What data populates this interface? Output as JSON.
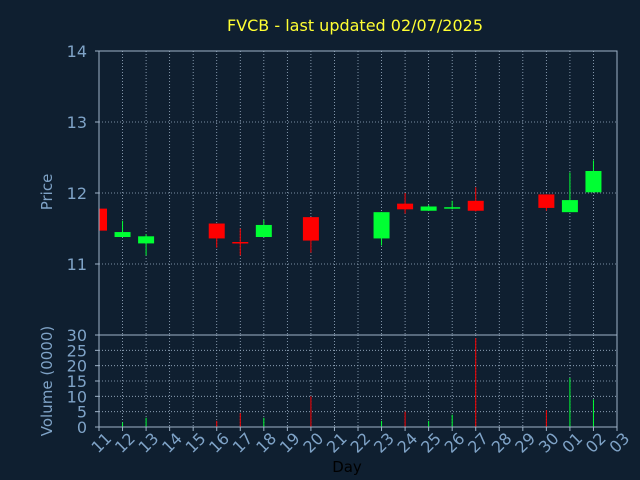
{
  "chart_data": {
    "type": "candlestick",
    "title": "FVCB - last updated 02/07/2025",
    "xlabel": "Day",
    "price_panel": {
      "ylabel": "Price",
      "ylim": [
        10.0,
        14.0
      ],
      "yticks": [
        "11",
        "12",
        "13",
        "14"
      ]
    },
    "volume_panel": {
      "ylabel": "Volume (0000)",
      "ylim": [
        0,
        30
      ],
      "yticks": [
        "0",
        "5",
        "10",
        "15",
        "20",
        "25",
        "30"
      ]
    },
    "x_tick_labels": [
      "11",
      "12",
      "13",
      "14",
      "15",
      "16",
      "17",
      "18",
      "19",
      "20",
      "21",
      "22",
      "23",
      "24",
      "25",
      "26",
      "27",
      "28",
      "29",
      "30",
      "01",
      "02",
      "03"
    ],
    "colors": {
      "up": "#00ff33",
      "down": "#ff0000",
      "grid": "#9fb3c8",
      "axis_text": "#7fa3c7",
      "title": "#ffff33",
      "background": "#0f1f30"
    },
    "series": [
      {
        "day": "11",
        "open": 11.78,
        "high": 11.78,
        "low": 11.45,
        "close": 11.47,
        "volume": 0.0
      },
      {
        "day": "12",
        "open": 11.38,
        "high": 11.61,
        "low": 11.38,
        "close": 11.45,
        "volume": 1.5
      },
      {
        "day": "13",
        "open": 11.29,
        "high": 11.42,
        "low": 11.12,
        "close": 11.39,
        "volume": 3.0
      },
      {
        "day": "16",
        "open": 11.57,
        "high": 11.57,
        "low": 11.23,
        "close": 11.36,
        "volume": 2.0
      },
      {
        "day": "17",
        "open": 11.31,
        "high": 11.5,
        "low": 11.12,
        "close": 11.3,
        "volume": 4.5
      },
      {
        "day": "18",
        "open": 11.38,
        "high": 11.62,
        "low": 11.38,
        "close": 11.55,
        "volume": 3.0
      },
      {
        "day": "20",
        "open": 11.66,
        "high": 11.66,
        "low": 11.16,
        "close": 11.33,
        "volume": 10.0
      },
      {
        "day": "23",
        "open": 11.36,
        "high": 11.73,
        "low": 11.26,
        "close": 11.73,
        "volume": 2.0
      },
      {
        "day": "24",
        "open": 11.85,
        "high": 12.0,
        "low": 11.71,
        "close": 11.77,
        "volume": 5.0
      },
      {
        "day": "25",
        "open": 11.75,
        "high": 11.83,
        "low": 11.75,
        "close": 11.81,
        "volume": 2.0
      },
      {
        "day": "26",
        "open": 11.8,
        "high": 11.89,
        "low": 11.77,
        "close": 11.8,
        "volume": 4.0
      },
      {
        "day": "27",
        "open": 11.89,
        "high": 12.08,
        "low": 11.74,
        "close": 11.75,
        "volume": 29.0
      },
      {
        "day": "30",
        "open": 11.98,
        "high": 11.98,
        "low": 11.75,
        "close": 11.79,
        "volume": 5.5
      },
      {
        "day": "01",
        "open": 11.73,
        "high": 12.29,
        "low": 11.73,
        "close": 11.9,
        "volume": 16.0
      },
      {
        "day": "02",
        "open": 12.01,
        "high": 12.46,
        "low": 12.01,
        "close": 12.31,
        "volume": 9.0
      }
    ]
  }
}
